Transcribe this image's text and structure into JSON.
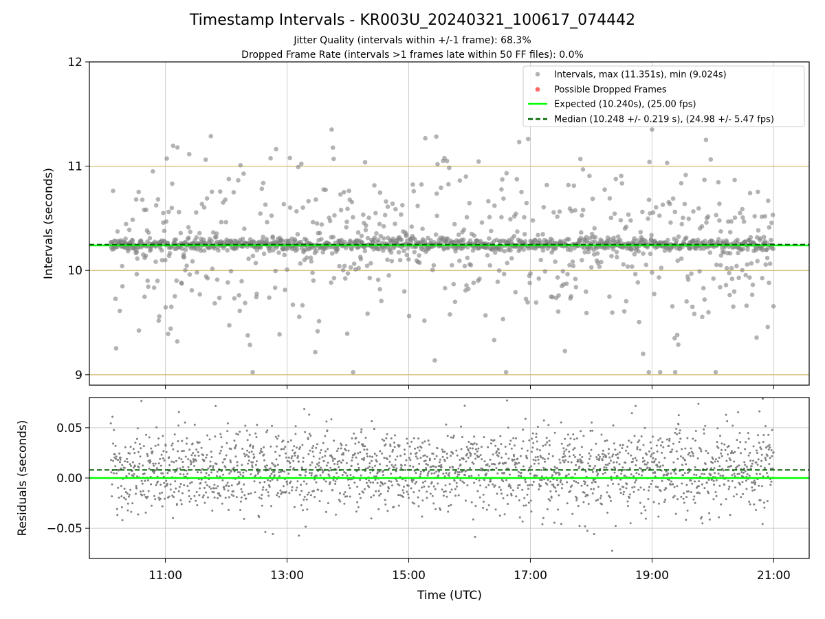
{
  "title": "Timestamp Intervals - KR003U_20240321_100617_074442",
  "subtitle_line1": "Jitter Quality (intervals within +/-1 frame): 68.3%",
  "subtitle_line2": "Dropped Frame Rate (intervals >1 frames late within 50 FF files): 0.0%",
  "colors": {
    "intervals": "#808080",
    "dropped": "#ff0000",
    "expected": "#00ff00",
    "median": "#006400",
    "reference_lines": "#d4b86a",
    "grid": "#cccccc"
  },
  "chart_data": [
    {
      "type": "scatter",
      "ylabel": "Intervals (seconds)",
      "ylim": [
        8.9,
        12.0
      ],
      "yticks": [
        9,
        10,
        11,
        12
      ],
      "xlim": [
        "09:45",
        "21:35"
      ],
      "xticks": [
        "11:00",
        "13:00",
        "15:00",
        "17:00",
        "19:00",
        "21:00"
      ],
      "grid": "vertical",
      "legend_position": "top-right",
      "horizontal_reference_lines": [
        9.0,
        10.0,
        11.0
      ],
      "x_range": [
        "10:06",
        "21:00"
      ],
      "expected_value": 10.24,
      "median_value": 10.248,
      "series": [
        {
          "name": "Intervals, max (11.351s), min (9.024s)",
          "max": 11.351,
          "min": 9.024,
          "median": 10.248,
          "core_spread": 0.03,
          "scatter_spread": 0.45,
          "point_count": 1600
        },
        {
          "name": "Possible Dropped Frames",
          "point_count": 0
        },
        {
          "name": "Expected (10.240s), (25.00 fps)",
          "value": 10.24
        },
        {
          "name": "Median (10.248 +/- 0.219 s), (24.98 +/- 5.47 fps)",
          "value": 10.248
        }
      ]
    },
    {
      "type": "scatter",
      "xlabel": "Time (UTC)",
      "ylabel": "Residuals (seconds)",
      "ylim": [
        -0.08,
        0.08
      ],
      "yticks": [
        -0.05,
        0.0,
        0.05
      ],
      "ytick_labels": [
        "−0.05",
        "0.00",
        "0.05"
      ],
      "xlim": [
        "09:45",
        "21:35"
      ],
      "xticks": [
        "11:00",
        "13:00",
        "15:00",
        "17:00",
        "19:00",
        "21:00"
      ],
      "grid": "both",
      "x_range": [
        "10:06",
        "21:00"
      ],
      "zero_line": 0.0,
      "median_offset": 0.008,
      "series": [
        {
          "name": "Residuals",
          "center": 0.008,
          "spread": 0.02,
          "point_count": 2100
        }
      ]
    }
  ]
}
